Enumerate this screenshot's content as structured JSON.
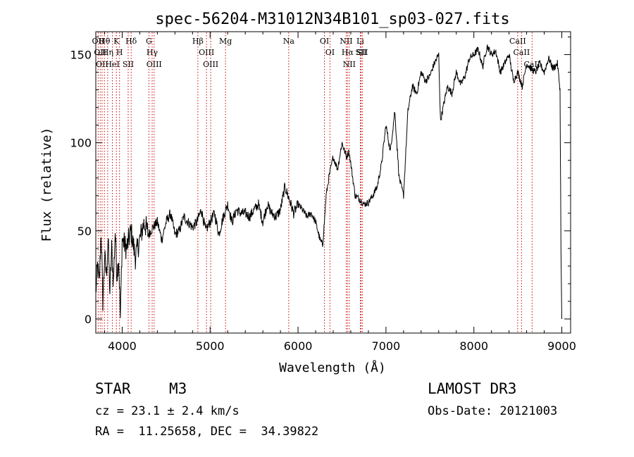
{
  "chart_data": {
    "type": "line",
    "title": "spec-56204-M31012N34B101_sp03-027.fits",
    "xlabel": "Wavelength (Å)",
    "ylabel": "Flux (relative)",
    "xlim": [
      3700,
      9100
    ],
    "ylim": [
      -8,
      163
    ],
    "xticks": [
      4000,
      5000,
      6000,
      7000,
      8000,
      9000
    ],
    "yticks": [
      0,
      50,
      100,
      150
    ],
    "xtick_labels": [
      "4000",
      "5000",
      "6000",
      "7000",
      "8000",
      "9000"
    ],
    "ytick_labels": [
      "0",
      "50",
      "100",
      "150"
    ],
    "series": [
      {
        "name": "flux",
        "x": [
          3700,
          3720,
          3740,
          3760,
          3780,
          3800,
          3820,
          3840,
          3860,
          3880,
          3900,
          3920,
          3940,
          3960,
          3980,
          4000,
          4050,
          4100,
          4150,
          4200,
          4250,
          4300,
          4350,
          4400,
          4450,
          4500,
          4550,
          4600,
          4650,
          4700,
          4750,
          4800,
          4850,
          4900,
          4950,
          5000,
          5050,
          5100,
          5150,
          5200,
          5250,
          5300,
          5350,
          5400,
          5450,
          5500,
          5550,
          5600,
          5650,
          5700,
          5750,
          5800,
          5850,
          5900,
          5950,
          6000,
          6050,
          6100,
          6150,
          6200,
          6250,
          6280,
          6300,
          6320,
          6350,
          6400,
          6450,
          6500,
          6550,
          6580,
          6600,
          6650,
          6700,
          6750,
          6800,
          6850,
          6900,
          6950,
          7000,
          7050,
          7100,
          7150,
          7200,
          7250,
          7300,
          7350,
          7400,
          7450,
          7500,
          7550,
          7600,
          7620,
          7650,
          7700,
          7750,
          7800,
          7850,
          7900,
          7950,
          8000,
          8050,
          8100,
          8150,
          8200,
          8250,
          8300,
          8350,
          8400,
          8450,
          8500,
          8550,
          8600,
          8650,
          8700,
          8750,
          8800,
          8850,
          8900,
          8950,
          8980,
          8990,
          9000
        ],
        "y": [
          15,
          30,
          20,
          50,
          10,
          35,
          25,
          45,
          15,
          40,
          20,
          50,
          25,
          35,
          0,
          45,
          40,
          50,
          35,
          45,
          55,
          48,
          52,
          55,
          45,
          55,
          60,
          48,
          50,
          58,
          55,
          52,
          55,
          62,
          50,
          55,
          60,
          48,
          58,
          65,
          55,
          62,
          60,
          60,
          58,
          62,
          65,
          55,
          65,
          60,
          58,
          62,
          75,
          68,
          60,
          65,
          62,
          58,
          60,
          55,
          45,
          42,
          55,
          70,
          80,
          92,
          85,
          100,
          92,
          95,
          88,
          70,
          68,
          65,
          66,
          70,
          75,
          88,
          110,
          95,
          118,
          80,
          70,
          118,
          132,
          128,
          140,
          135,
          138,
          145,
          150,
          112,
          120,
          132,
          128,
          140,
          133,
          138,
          148,
          150,
          153,
          143,
          155,
          150,
          152,
          140,
          145,
          150,
          135,
          140,
          132,
          145,
          142,
          140,
          145,
          140,
          148,
          142,
          145,
          130,
          40,
          0
        ]
      }
    ],
    "lines": [
      {
        "wave": 3727,
        "label": "OII"
      },
      {
        "wave": 3750,
        "label": "OII"
      },
      {
        "wave": 3771,
        "label": "OII"
      },
      {
        "wave": 3798,
        "label": "Hθ"
      },
      {
        "wave": 3835,
        "label": "Hη"
      },
      {
        "wave": 3889,
        "label": "HeI"
      },
      {
        "wave": 3934,
        "label": "K"
      },
      {
        "wave": 3970,
        "label": "H"
      },
      {
        "wave": 4102,
        "label": "Hδ"
      },
      {
        "wave": 4068,
        "label": "SII"
      },
      {
        "wave": 4304,
        "label": "G"
      },
      {
        "wave": 4341,
        "label": "Hγ"
      },
      {
        "wave": 4363,
        "label": "OIII"
      },
      {
        "wave": 4861,
        "label": "Hβ"
      },
      {
        "wave": 4959,
        "label": "OIII"
      },
      {
        "wave": 5007,
        "label": "OIII"
      },
      {
        "wave": 5175,
        "label": "Mg"
      },
      {
        "wave": 5894,
        "label": "Na"
      },
      {
        "wave": 6300,
        "label": "OI"
      },
      {
        "wave": 6363,
        "label": "OI"
      },
      {
        "wave": 6548,
        "label": "NII"
      },
      {
        "wave": 6563,
        "label": "Hα"
      },
      {
        "wave": 6583,
        "label": "NII"
      },
      {
        "wave": 6708,
        "label": "Li"
      },
      {
        "wave": 6716,
        "label": "SII"
      },
      {
        "wave": 6731,
        "label": "SII"
      },
      {
        "wave": 8498,
        "label": "CaII"
      },
      {
        "wave": 8542,
        "label": "CaII"
      },
      {
        "wave": 8662,
        "label": "CaII"
      }
    ],
    "line_color": "#cc0000"
  },
  "info": {
    "object_class": "STAR",
    "subclass": "M3",
    "redshift": "cz = 23.1 ± 2.4 km/s",
    "coords": "RA =  11.25658, DEC =  34.39822",
    "survey": "LAMOST DR3",
    "obs_date": "Obs-Date: 20121003"
  }
}
